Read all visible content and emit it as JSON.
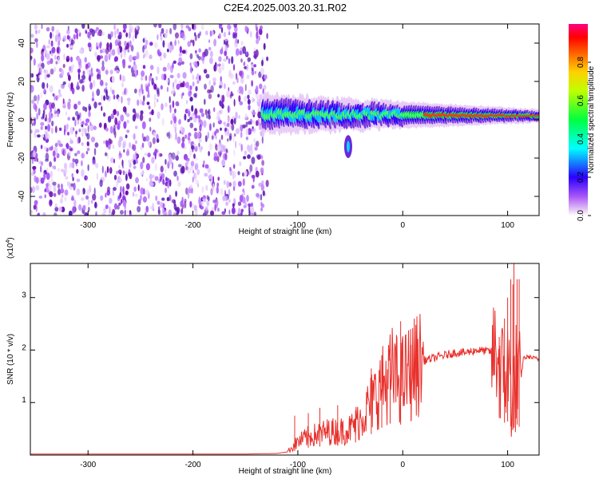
{
  "title": "C2E4.2025.003.20.31.R02",
  "colors": {
    "snr_line": "#e8302c",
    "spectrogram_noise": "#8a2be2"
  },
  "chart_data": [
    {
      "type": "heatmap",
      "name": "spectrogram",
      "xlabel": "Height of straight line (km)",
      "ylabel": "Frequency (Hz)",
      "xlim": [
        -355,
        130
      ],
      "ylim": [
        -50,
        50
      ],
      "x_ticks": [
        -300,
        -200,
        -100,
        0,
        100
      ],
      "y_ticks": [
        -40,
        -20,
        0,
        20,
        40
      ],
      "grid": false,
      "colorbar": {
        "label": "Normalized spectral amplitude",
        "ticks": [
          "0.0",
          "0.2",
          "0.4",
          "0.6",
          "0.8"
        ],
        "range": [
          0,
          1
        ],
        "colormap": "rainbow"
      },
      "noise_region_x": [
        -355,
        -133
      ],
      "signal_band": {
        "x_start": -133,
        "x_end": 130,
        "center_hz_start": 3,
        "center_hz_end": 2,
        "half_width_hz_start": 6,
        "half_width_hz_end": 2
      },
      "side_feature": {
        "x": -52,
        "center_hz": -14,
        "half_width_hz": 3
      }
    },
    {
      "type": "line",
      "name": "snr",
      "xlabel": "Height of straight line (km)",
      "ylabel": "SNR (10 * v/v)",
      "yscale_label_base": "(x10",
      "yscale_label_exp": "4",
      "yscale_label_end": ")",
      "xlim": [
        -355,
        130
      ],
      "ylim": [
        0,
        3.65
      ],
      "x_ticks": [
        -300,
        -200,
        -100,
        0,
        100
      ],
      "y_ticks": [
        1,
        2,
        3
      ],
      "grid": false,
      "series": [
        {
          "x": [
            -355,
            -300,
            -250,
            -200,
            -150,
            -120,
            -110,
            -100,
            -90,
            -80,
            -70,
            -60,
            -50,
            -40,
            -30,
            -20,
            -10,
            -5,
            0,
            10,
            20,
            30,
            40,
            50,
            60,
            70,
            80,
            90,
            95,
            100,
            105,
            108,
            112,
            115,
            120,
            125,
            130
          ],
          "values": [
            0.02,
            0.02,
            0.02,
            0.02,
            0.02,
            0.03,
            0.06,
            0.25,
            0.35,
            0.4,
            0.45,
            0.45,
            0.5,
            0.7,
            1.0,
            1.3,
            1.55,
            1.45,
            1.45,
            1.65,
            1.8,
            1.85,
            1.9,
            1.95,
            1.95,
            2.0,
            1.98,
            1.95,
            1.5,
            1.6,
            1.2,
            1.5,
            1.3,
            1.85,
            1.87,
            1.85,
            1.82
          ]
        }
      ],
      "spikes": [
        {
          "x": -103,
          "value": 0.75
        },
        {
          "x": -90,
          "value": 0.8
        },
        {
          "x": -79,
          "value": 0.9
        },
        {
          "x": -62,
          "value": 0.95
        },
        {
          "x": -45,
          "value": 0.85
        },
        {
          "x": -30,
          "value": 1.65
        },
        {
          "x": -20,
          "value": 1.9
        },
        {
          "x": -12,
          "value": 1.85
        },
        {
          "x": -2,
          "value": 2.55
        },
        {
          "x": 8,
          "value": 2.1
        },
        {
          "x": 92,
          "value": 2.25
        },
        {
          "x": 97,
          "value": 2.6
        },
        {
          "x": 100,
          "value": 3.0
        },
        {
          "x": 103,
          "value": 3.35
        },
        {
          "x": 105,
          "value": 3.25
        },
        {
          "x": 106,
          "value": 3.65
        },
        {
          "x": 109,
          "value": 3.35
        },
        {
          "x": 111,
          "value": 3.35
        }
      ]
    }
  ]
}
